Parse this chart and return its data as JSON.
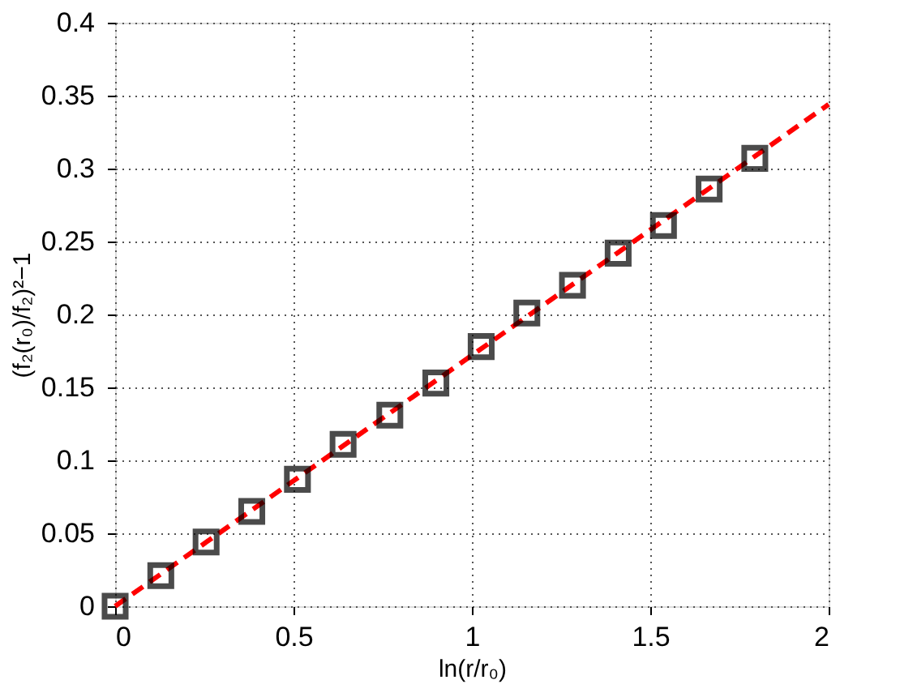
{
  "chart_data": {
    "type": "scatter",
    "xlabel": "ln(r/r₀)",
    "ylabel": "(f₂(r₀)/f₂)²−1",
    "xlim": [
      0,
      2
    ],
    "ylim": [
      0,
      0.4
    ],
    "xticks": [
      0,
      0.5,
      1,
      1.5,
      2
    ],
    "yticks": [
      0,
      0.05,
      0.1,
      0.15,
      0.2,
      0.25,
      0.3,
      0.35,
      0.4
    ],
    "grid": true,
    "series": [
      {
        "type": "line",
        "color": "#ff0000",
        "line_style": "dashed",
        "marker": "none",
        "x": [
          0,
          2
        ],
        "values": [
          0,
          0.344
        ]
      },
      {
        "color": "#000000",
        "marker": "square",
        "x": [
          0,
          0.128,
          0.255,
          0.383,
          0.511,
          0.639,
          0.77,
          0.899,
          1.026,
          1.154,
          1.282,
          1.41,
          1.537,
          1.665,
          1.793
        ],
        "values": [
          0,
          0.021,
          0.044,
          0.065,
          0.087,
          0.111,
          0.131,
          0.153,
          0.178,
          0.201,
          0.22,
          0.242,
          0.261,
          0.286,
          0.307
        ]
      }
    ]
  }
}
